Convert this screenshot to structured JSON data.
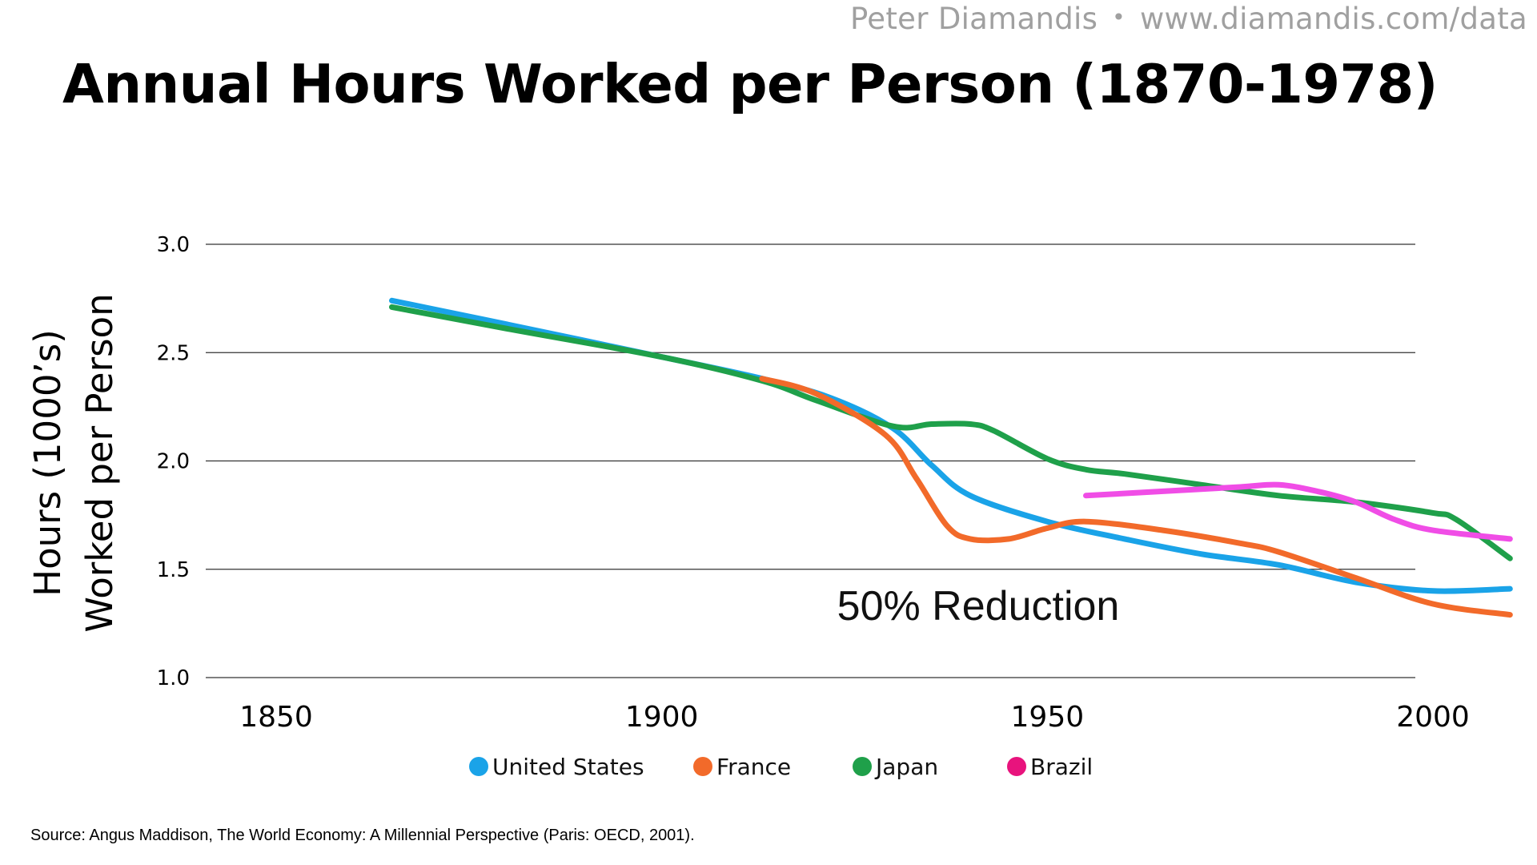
{
  "header": {
    "author": "Peter Diamandis",
    "separator": "•",
    "url": "www.diamandis.com/data"
  },
  "page_title": "Annual Hours Worked per Person (1870-1978)",
  "source": "Source: Angus Maddison, The World Economy: A Millennial Perspective (Paris: OECD, 2001).",
  "chart_data": {
    "type": "line",
    "title": "Annual Hours Worked per Person (1870-1978)",
    "ylabel_line1": "Hours (1000’s)",
    "ylabel_line2": "Worked per Person",
    "xlabel": "",
    "xlim": [
      1840,
      2011
    ],
    "ylim": [
      1.0,
      3.0
    ],
    "x_ticks": [
      "1850",
      "1900",
      "1950",
      "2000"
    ],
    "y_ticks": [
      "3.0",
      "2.5",
      "2.0",
      "1.5",
      "1.0"
    ],
    "grid": "horizontal",
    "legend_position": "bottom",
    "annotation": "50% Reduction",
    "series": [
      {
        "name": "United States",
        "color": "#1aa3e8",
        "points": [
          [
            1865,
            2.74
          ],
          [
            1880,
            2.63
          ],
          [
            1900,
            2.48
          ],
          [
            1913,
            2.38
          ],
          [
            1922,
            2.29
          ],
          [
            1930,
            2.15
          ],
          [
            1935,
            1.98
          ],
          [
            1940,
            1.84
          ],
          [
            1950,
            1.72
          ],
          [
            1960,
            1.64
          ],
          [
            1970,
            1.57
          ],
          [
            1980,
            1.52
          ],
          [
            1990,
            1.44
          ],
          [
            2000,
            1.4
          ],
          [
            2010,
            1.41
          ]
        ]
      },
      {
        "name": "France",
        "color": "#f26a2a",
        "points": [
          [
            1913,
            2.38
          ],
          [
            1920,
            2.31
          ],
          [
            1929,
            2.12
          ],
          [
            1933,
            1.92
          ],
          [
            1937,
            1.7
          ],
          [
            1940,
            1.64
          ],
          [
            1945,
            1.64
          ],
          [
            1950,
            1.69
          ],
          [
            1955,
            1.72
          ],
          [
            1965,
            1.68
          ],
          [
            1975,
            1.62
          ],
          [
            1980,
            1.58
          ],
          [
            1990,
            1.46
          ],
          [
            2000,
            1.34
          ],
          [
            2010,
            1.29
          ]
        ]
      },
      {
        "name": "Japan",
        "color": "#1fa04a",
        "points": [
          [
            1865,
            2.71
          ],
          [
            1880,
            2.61
          ],
          [
            1900,
            2.48
          ],
          [
            1913,
            2.37
          ],
          [
            1920,
            2.28
          ],
          [
            1930,
            2.16
          ],
          [
            1935,
            2.17
          ],
          [
            1940,
            2.17
          ],
          [
            1943,
            2.14
          ],
          [
            1950,
            2.01
          ],
          [
            1955,
            1.96
          ],
          [
            1960,
            1.94
          ],
          [
            1970,
            1.89
          ],
          [
            1980,
            1.84
          ],
          [
            1990,
            1.81
          ],
          [
            2000,
            1.76
          ],
          [
            2003,
            1.73
          ],
          [
            2010,
            1.55
          ]
        ]
      },
      {
        "name": "Brazil",
        "color": "#f04de6",
        "legend_color": "#e8137d",
        "points": [
          [
            1955,
            1.84
          ],
          [
            1965,
            1.86
          ],
          [
            1975,
            1.88
          ],
          [
            1980,
            1.89
          ],
          [
            1985,
            1.86
          ],
          [
            1990,
            1.81
          ],
          [
            1995,
            1.73
          ],
          [
            2000,
            1.68
          ],
          [
            2010,
            1.64
          ]
        ]
      }
    ]
  }
}
